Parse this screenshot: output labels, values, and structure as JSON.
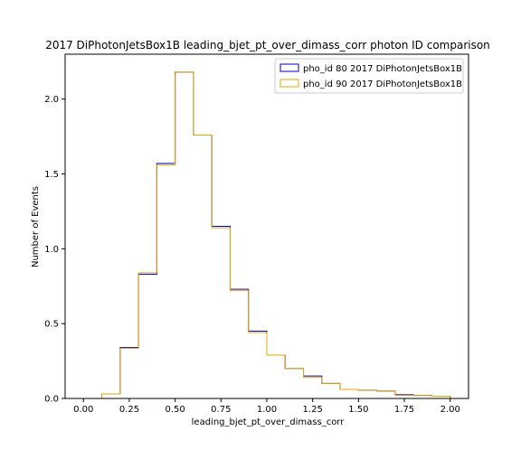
{
  "chart_data": {
    "type": "step-histogram",
    "title": "2017 DiPhotonJetsBox1B leading_bjet_pt_over_dimass_corr photon ID comparison",
    "xlabel": "leading_bjet_pt_over_dimass_corr",
    "ylabel": "Number of Events",
    "xlim": [
      -0.1,
      2.1
    ],
    "ylim": [
      0,
      2.3
    ],
    "xticks": [
      0.0,
      0.25,
      0.5,
      0.75,
      1.0,
      1.25,
      1.5,
      1.75,
      2.0
    ],
    "xtick_labels": [
      "0.00",
      "0.25",
      "0.50",
      "0.75",
      "1.00",
      "1.25",
      "1.50",
      "1.75",
      "2.00"
    ],
    "yticks": [
      0.0,
      0.5,
      1.0,
      1.5,
      2.0
    ],
    "ytick_labels": [
      "0.0",
      "0.5",
      "1.0",
      "1.5",
      "2.0"
    ],
    "bin_edges": [
      0.0,
      0.1,
      0.2,
      0.3,
      0.4,
      0.5,
      0.6,
      0.7,
      0.8,
      0.9,
      1.0,
      1.1,
      1.2,
      1.3,
      1.4,
      1.5,
      1.6,
      1.7,
      1.8,
      1.9,
      2.0
    ],
    "legend_location": "upper right",
    "grid": false,
    "series": [
      {
        "name": "pho_id 80 2017 DiPhotonJetsBox1B",
        "color": "#0000cc",
        "values": [
          0.0,
          0.03,
          0.34,
          0.83,
          1.57,
          2.18,
          1.76,
          1.15,
          0.73,
          0.45,
          0.29,
          0.2,
          0.15,
          0.1,
          0.06,
          0.055,
          0.05,
          0.025,
          0.02,
          0.015
        ]
      },
      {
        "name": "pho_id 90 2017 DiPhotonJetsBox1B",
        "color": "#e6a800",
        "values": [
          0.0,
          0.03,
          0.335,
          0.84,
          1.56,
          2.18,
          1.76,
          1.14,
          0.72,
          0.44,
          0.29,
          0.2,
          0.14,
          0.1,
          0.06,
          0.055,
          0.05,
          0.02,
          0.02,
          0.015
        ]
      }
    ]
  }
}
